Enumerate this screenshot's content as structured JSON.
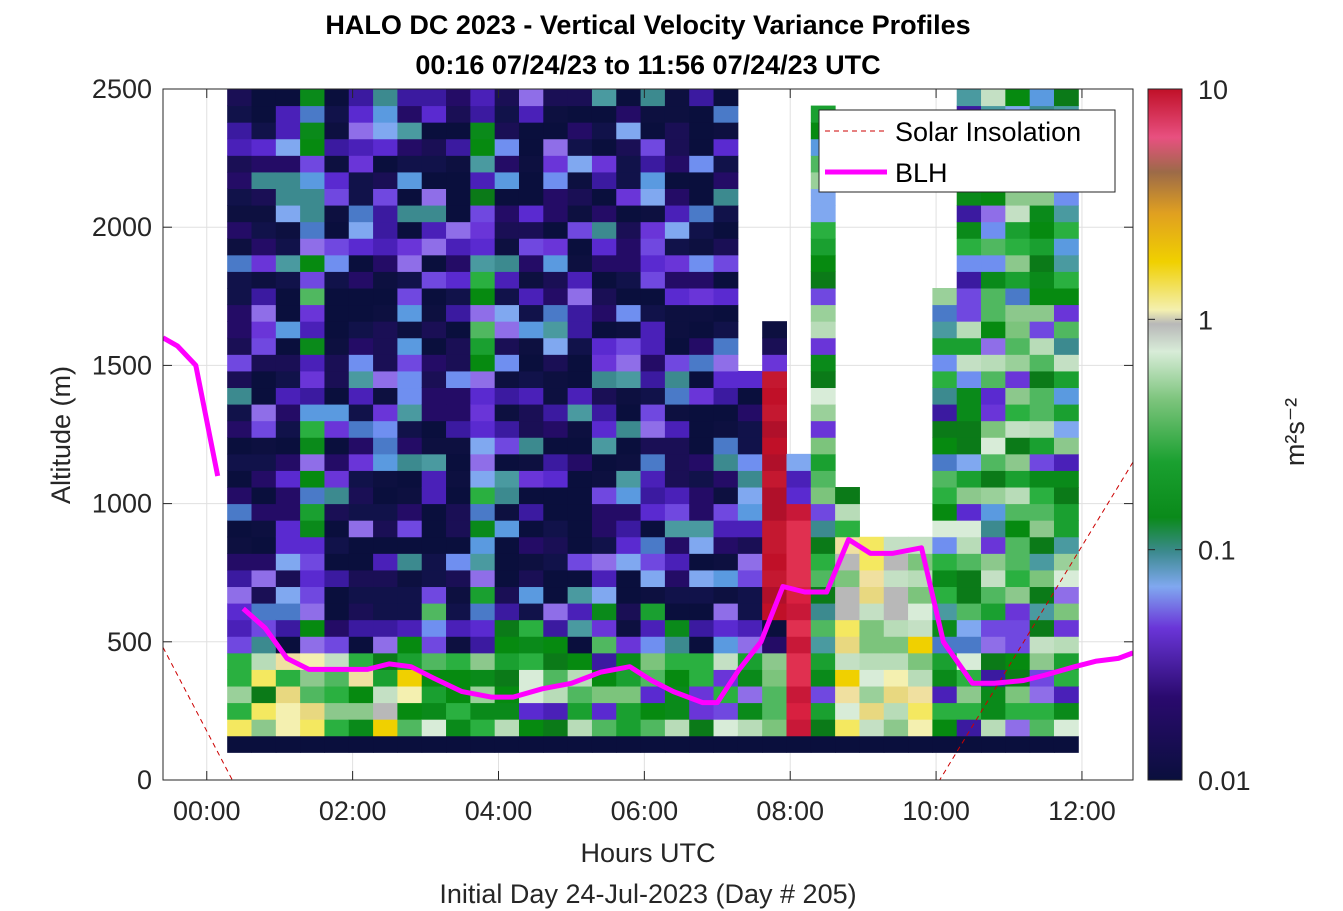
{
  "chart_data": {
    "type": "heatmap",
    "title": "HALO DC 2023 - Vertical Velocity Variance Profiles",
    "subtitle": "00:16 07/24/23 to 11:56 07/24/23  UTC",
    "xlabel": "Hours UTC",
    "ylabel": "Altitude (m)",
    "footer": "Initial Day 24-Jul-2023 (Day # 205)",
    "xlim": [
      -0.6,
      12.7
    ],
    "ylim": [
      0,
      2500
    ],
    "x_ticks": [
      0,
      2,
      4,
      6,
      8,
      10,
      12
    ],
    "x_tick_labels": [
      "00:00",
      "02:00",
      "04:00",
      "06:00",
      "08:00",
      "10:00",
      "12:00"
    ],
    "y_ticks": [
      0,
      500,
      1000,
      1500,
      2000,
      2500
    ],
    "y_tick_labels": [
      "0",
      "500",
      "1000",
      "1500",
      "2000",
      "2500"
    ],
    "grid": true,
    "legend": {
      "placement": "top-right",
      "entries": [
        {
          "label": "Solar Insolation",
          "color": "#cc0000",
          "style": "dashed"
        },
        {
          "label": "BLH",
          "color": "#ff00ff",
          "style": "solid"
        }
      ]
    },
    "colorbar": {
      "label": "m²s⁻²",
      "scale": "log",
      "range": [
        0.01,
        10
      ],
      "tick_values": [
        0.01,
        0.1,
        1,
        10
      ],
      "tick_labels": [
        "0.01",
        "0.1",
        "1",
        "10"
      ]
    },
    "heatmap_grid": {
      "x_start": 0.28,
      "x_end": 11.95,
      "columns": 35,
      "y_start": 100,
      "y_end": 2500,
      "rows": 40,
      "note": "variance values (m2 s-2), log colour scale"
    },
    "solar_insolation": {
      "x": [
        -0.6,
        0.35,
        10.05,
        12.7
      ],
      "y": [
        480,
        0,
        0,
        1150
      ]
    },
    "blh": {
      "segments": [
        {
          "x": [
            -0.6,
            -0.4,
            -0.15,
            0.15
          ],
          "y": [
            1600,
            1570,
            1500,
            1100
          ]
        },
        {
          "x": [
            0.5,
            0.8,
            1.1,
            1.4,
            1.8,
            2.2,
            2.5,
            2.8,
            3.1,
            3.5,
            3.9,
            4.2,
            4.6,
            5.0,
            5.4,
            5.8,
            6.1,
            6.4,
            6.8,
            7.0,
            7.3,
            7.6,
            7.9,
            8.2,
            8.5,
            8.8,
            9.1,
            9.4,
            9.8,
            10.1,
            10.5,
            10.8,
            11.2,
            11.5,
            11.9,
            12.2,
            12.5,
            12.7
          ],
          "y": [
            620,
            550,
            440,
            400,
            400,
            400,
            420,
            410,
            370,
            320,
            300,
            300,
            330,
            350,
            390,
            410,
            360,
            320,
            280,
            280,
            400,
            500,
            700,
            680,
            680,
            870,
            820,
            820,
            840,
            500,
            350,
            350,
            360,
            380,
            410,
            430,
            440,
            460
          ]
        }
      ]
    }
  }
}
